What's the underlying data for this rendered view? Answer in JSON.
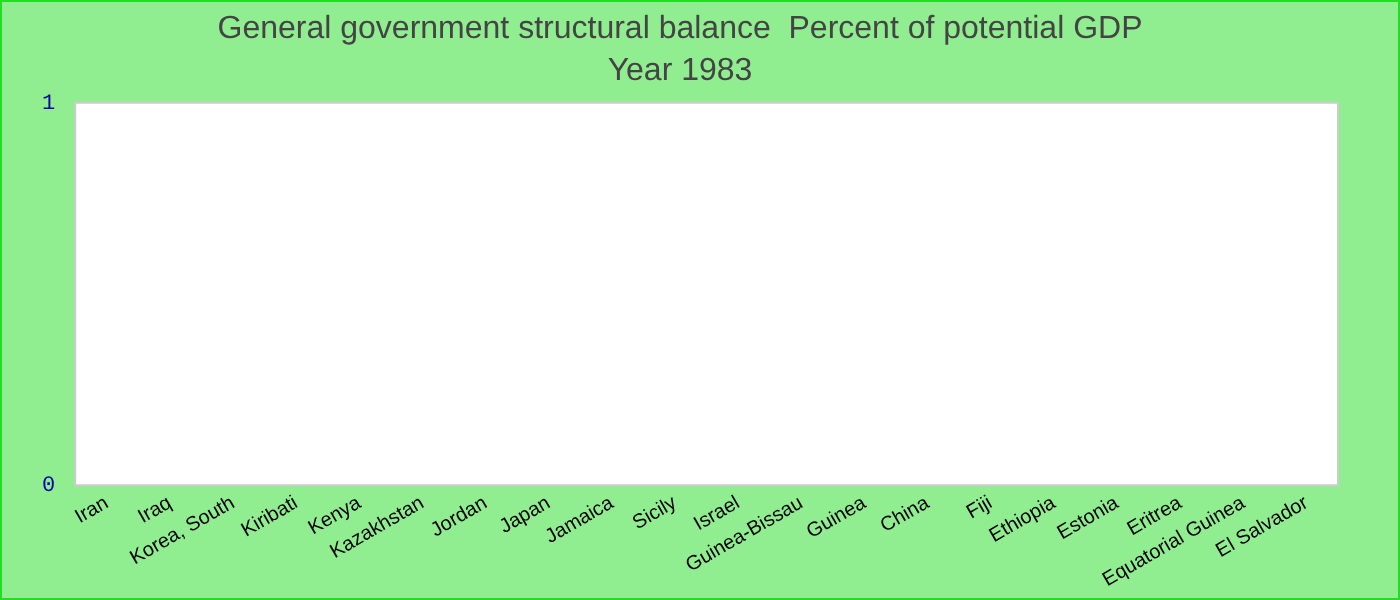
{
  "chart_data": {
    "type": "bar",
    "title": "General government structural balance  Percent of potential GDP",
    "subtitle": "Year 1983",
    "categories": [
      "Iran",
      "Iraq",
      "Korea, South",
      "Kiribati",
      "Kenya",
      "Kazakhstan",
      "Jordan",
      "Japan",
      "Jamaica",
      "Sicily",
      "Israel",
      "Guinea-Bissau",
      "Guinea",
      "China",
      "Fiji",
      "Ethiopia",
      "Estonia",
      "Eritrea",
      "Equatorial Guinea",
      "El Salvador"
    ],
    "values": [
      null,
      null,
      null,
      null,
      null,
      null,
      null,
      null,
      null,
      null,
      null,
      null,
      null,
      null,
      null,
      null,
      null,
      null,
      null,
      null
    ],
    "ylim": [
      0,
      1
    ],
    "yticks": [
      0,
      1
    ],
    "grid": false,
    "legend": false
  }
}
